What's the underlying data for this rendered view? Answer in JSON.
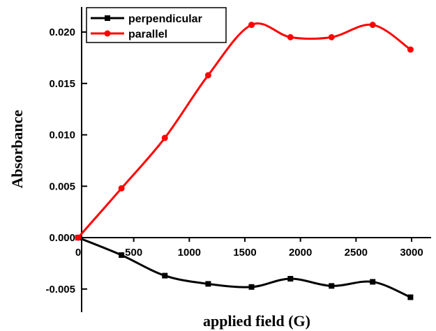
{
  "chart_data": {
    "type": "line",
    "xlabel": "applied field (G)",
    "ylabel": "Absorbance",
    "xlim": [
      0,
      3200
    ],
    "ylim": [
      -0.0065,
      0.0232
    ],
    "x_ticks": [
      {
        "value": 500,
        "label": "500"
      },
      {
        "value": 1000,
        "label": "1000"
      },
      {
        "value": 1500,
        "label": "1500"
      },
      {
        "value": 2000,
        "label": "2000"
      },
      {
        "value": 2500,
        "label": "2500"
      },
      {
        "value": 3000,
        "label": "3000"
      }
    ],
    "y_ticks": [
      {
        "value": 0.02,
        "label": "0.020"
      },
      {
        "value": 0.015,
        "label": "0.015"
      },
      {
        "value": 0.01,
        "label": "0.010"
      },
      {
        "value": 0.005,
        "label": "0.005"
      },
      {
        "value": 0.0,
        "label": "0.000"
      },
      {
        "value": -0.005,
        "label": "-0.005"
      }
    ],
    "origin_label": "0",
    "legend_position": "top-left",
    "grid": false,
    "series": [
      {
        "name": "perpendicular",
        "marker": "square",
        "color": "#000000",
        "x": [
          0,
          390,
          780,
          1170,
          1560,
          1910,
          2280,
          2650,
          2990
        ],
        "y": [
          0.0,
          -0.0017,
          -0.0037,
          -0.0045,
          -0.0048,
          -0.004,
          -0.0047,
          -0.0043,
          -0.0058
        ]
      },
      {
        "name": "parallel",
        "marker": "circle",
        "color": "#ff0000",
        "x": [
          0,
          390,
          780,
          1170,
          1560,
          1910,
          2280,
          2650,
          2990
        ],
        "y": [
          0.0,
          0.0048,
          0.0097,
          0.0158,
          0.0207,
          0.0195,
          0.0195,
          0.0207,
          0.0183
        ]
      }
    ]
  }
}
